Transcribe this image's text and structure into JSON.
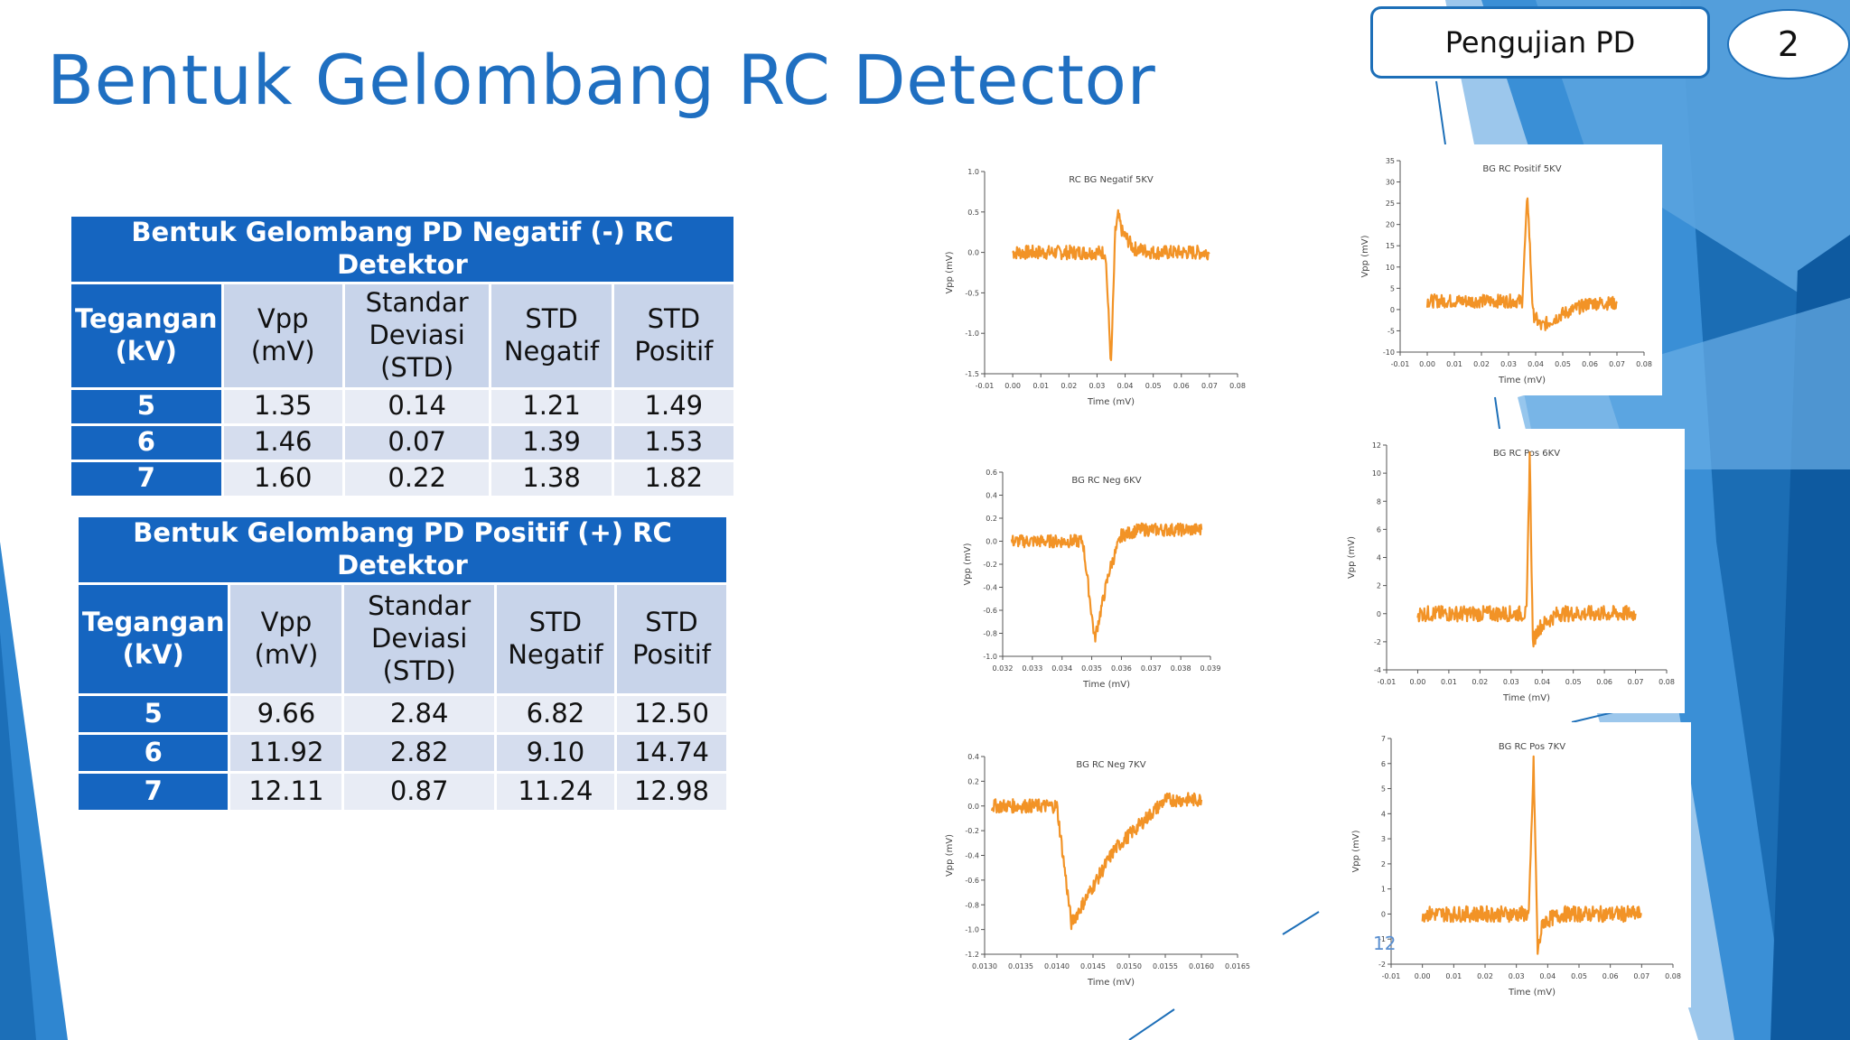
{
  "slide": {
    "title": "Bentuk Gelombang RC Detector",
    "section_label": "Pengujian PD",
    "page_badge": "2",
    "slide_number": "12"
  },
  "table_negatif": {
    "caption": "Bentuk Gelombang PD Negatif (-) RC Detektor",
    "headers": [
      "Tegangan (kV)",
      "Vpp (mV)",
      "Standar Deviasi (STD)",
      "STD Negatif",
      "STD Positif"
    ],
    "rows": [
      [
        "5",
        "1.35",
        "0.14",
        "1.21",
        "1.49"
      ],
      [
        "6",
        "1.46",
        "0.07",
        "1.39",
        "1.53"
      ],
      [
        "7",
        "1.60",
        "0.22",
        "1.38",
        "1.82"
      ]
    ]
  },
  "table_positif": {
    "caption": "Bentuk Gelombang PD Positif (+) RC Detektor",
    "headers": [
      "Tegangan (kV)",
      "Vpp (mV)",
      "Standar Deviasi (STD)",
      "STD Negatif",
      "STD Positif"
    ],
    "rows": [
      [
        "5",
        "9.66",
        "2.84",
        "6.82",
        "12.50"
      ],
      [
        "6",
        "11.92",
        "2.82",
        "9.10",
        "14.74"
      ],
      [
        "7",
        "12.11",
        "0.87",
        "11.24",
        "12.98"
      ]
    ]
  },
  "colors": {
    "accent": "#1f6fc1",
    "table_header": "#1565c0",
    "trace": "#f08000"
  },
  "chart_data": [
    {
      "type": "line",
      "title": "RC BG Negatif 5KV",
      "xlabel": "Time (mV)",
      "ylabel": "Vpp (mV)",
      "xlim": [
        -0.01,
        0.08
      ],
      "ylim": [
        -1.5,
        1.0
      ],
      "xticks": [
        "-0.01",
        "0.00",
        "0.01",
        "0.02",
        "0.03",
        "0.04",
        "0.05",
        "0.06",
        "0.07",
        "0.08"
      ],
      "yticks": [
        "-1.5",
        "-1.0",
        "-0.5",
        "0.0",
        "0.5",
        "1.0"
      ],
      "x": [
        0.0,
        0.033,
        0.035,
        0.0365,
        0.0375,
        0.039,
        0.043,
        0.05,
        0.07
      ],
      "y": [
        0.0,
        0.0,
        -1.4,
        0.25,
        0.45,
        0.25,
        0.05,
        0.0,
        0.0
      ]
    },
    {
      "type": "line",
      "title": "BG RC Positif 5KV",
      "xlabel": "Time (mV)",
      "ylabel": "Vpp (mV)",
      "xlim": [
        -0.01,
        0.08
      ],
      "ylim": [
        -10,
        35
      ],
      "xticks": [
        "-0.01",
        "0.00",
        "0.01",
        "0.02",
        "0.03",
        "0.04",
        "0.05",
        "0.06",
        "0.07",
        "0.08"
      ],
      "yticks": [
        "-10",
        "-5",
        "0",
        "5",
        "10",
        "15",
        "20",
        "25",
        "30",
        "35"
      ],
      "x": [
        0.0,
        0.035,
        0.037,
        0.039,
        0.042,
        0.05,
        0.06,
        0.07
      ],
      "y": [
        2.0,
        2.0,
        27.0,
        -1.0,
        -4.0,
        -1.0,
        1.5,
        1.5
      ]
    },
    {
      "type": "line",
      "title": "BG RC Neg 6KV",
      "xlabel": "Time (mV)",
      "ylabel": "Vpp (mV)",
      "xlim": [
        0.032,
        0.039
      ],
      "ylim": [
        -1.0,
        0.6
      ],
      "xticks": [
        "0.032",
        "0.033",
        "0.034",
        "0.035",
        "0.036",
        "0.037",
        "0.038",
        "0.039"
      ],
      "yticks": [
        "-1.0",
        "-0.8",
        "-0.6",
        "-0.4",
        "-0.2",
        "0.0",
        "0.2",
        "0.4",
        "0.6"
      ],
      "x": [
        0.0323,
        0.0347,
        0.0351,
        0.0356,
        0.036,
        0.0366,
        0.0387
      ],
      "y": [
        0.0,
        0.0,
        -0.85,
        -0.25,
        0.05,
        0.1,
        0.1
      ]
    },
    {
      "type": "line",
      "title": "BG RC Pos 6KV",
      "xlabel": "Time (mV)",
      "ylabel": "Vpp (mV)",
      "xlim": [
        -0.01,
        0.08
      ],
      "ylim": [
        -4,
        12
      ],
      "xticks": [
        "-0.01",
        "0.00",
        "0.01",
        "0.02",
        "0.03",
        "0.04",
        "0.05",
        "0.06",
        "0.07",
        "0.08"
      ],
      "yticks": [
        "-4",
        "-2",
        "0",
        "2",
        "4",
        "6",
        "8",
        "10",
        "12"
      ],
      "x": [
        0.0,
        0.035,
        0.036,
        0.037,
        0.039,
        0.045,
        0.055,
        0.07
      ],
      "y": [
        0.0,
        0.0,
        11.5,
        -2.0,
        -1.0,
        0.0,
        0.0,
        0.0
      ]
    },
    {
      "type": "line",
      "title": "BG RC Neg 7KV",
      "xlabel": "Time (mV)",
      "ylabel": "Vpp (mV)",
      "xlim": [
        0.013,
        0.0165
      ],
      "ylim": [
        -1.2,
        0.4
      ],
      "xticks": [
        "0.0130",
        "0.0135",
        "0.0140",
        "0.0145",
        "0.0150",
        "0.0155",
        "0.0160",
        "0.0165"
      ],
      "yticks": [
        "-1.2",
        "-1.0",
        "-0.8",
        "-0.6",
        "-0.4",
        "-0.2",
        "0.0",
        "0.2",
        "0.4"
      ],
      "x": [
        0.0131,
        0.014,
        0.0142,
        0.0148,
        0.0155,
        0.016
      ],
      "y": [
        0.0,
        0.0,
        -0.95,
        -0.35,
        0.05,
        0.05
      ]
    },
    {
      "type": "line",
      "title": "BG RC Pos 7KV",
      "xlabel": "Time (mV)",
      "ylabel": "Vpp (mV)",
      "xlim": [
        -0.01,
        0.08
      ],
      "ylim": [
        -2,
        7
      ],
      "xticks": [
        "-0.01",
        "0.00",
        "0.01",
        "0.02",
        "0.03",
        "0.04",
        "0.05",
        "0.06",
        "0.07",
        "0.08"
      ],
      "yticks": [
        "-2",
        "-1",
        "0",
        "1",
        "2",
        "3",
        "4",
        "5",
        "6",
        "7"
      ],
      "x": [
        0.0,
        0.034,
        0.0355,
        0.0368,
        0.0385,
        0.045,
        0.07
      ],
      "y": [
        0.0,
        0.0,
        6.0,
        -1.5,
        -0.3,
        0.0,
        0.0
      ]
    }
  ]
}
